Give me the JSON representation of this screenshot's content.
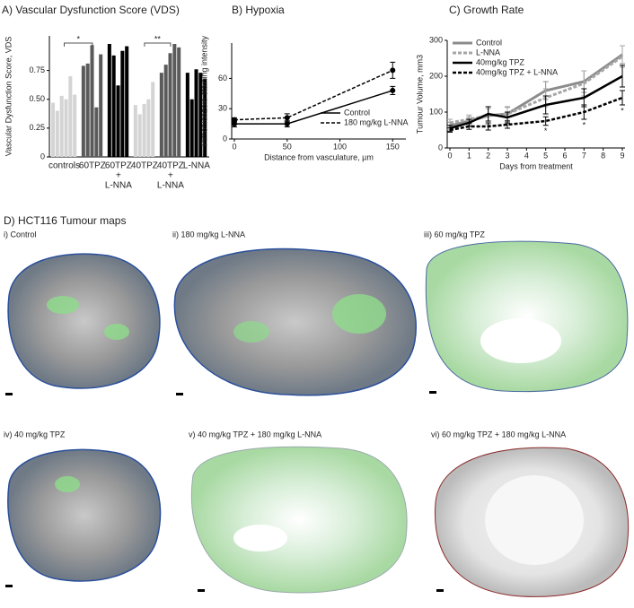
{
  "chart_data": [
    {
      "type": "bar",
      "title": "A) Vascular Dysfunction Score (VDS)",
      "y_label": "Vascular Dysfunction Score, VDS",
      "ylim": [
        0,
        1.05
      ],
      "yticks": [
        0,
        0.25,
        {
          "value": 0.5,
          "label": "0.50"
        },
        0.75
      ],
      "groups": [
        {
          "label_lines": [
            "controls"
          ],
          "color": "#d4d4d4",
          "values": [
            0.47,
            0.4,
            0.53,
            0.5,
            0.7,
            0.54
          ]
        },
        {
          "label_lines": [
            "60TPZ"
          ],
          "color": "#5a5a5a",
          "values": [
            0.79,
            0.81,
            0.97,
            0.43,
            0.89
          ]
        },
        {
          "label_lines": [
            "60TPZ",
            "+",
            "L-NNA"
          ],
          "color": "#000000",
          "values": [
            0.98,
            0.88,
            0.62,
            0.92,
            0.96
          ]
        },
        {
          "label_lines": [
            "40TPZ"
          ],
          "color": "#d4d4d4",
          "values": [
            0.45,
            0.37,
            0.46,
            0.5,
            0.65
          ]
        },
        {
          "label_lines": [
            "40TPZ",
            "+",
            "L-NNA"
          ],
          "color": "#5a5a5a",
          "values": [
            0.73,
            0.8,
            0.9,
            0.98,
            0.95
          ]
        },
        {
          "label_lines": [
            "L-NNA"
          ],
          "color": "#000000",
          "values": [
            0.73,
            0.5,
            0.76,
            0.73,
            0.68
          ]
        }
      ],
      "significance": [
        {
          "label": "*",
          "from": 0,
          "to": 1
        },
        {
          "label": "**",
          "from": 3,
          "to": 4
        }
      ]
    },
    {
      "type": "line",
      "title": "B) Hypoxia",
      "x_label": "Distance from vasculature, µm",
      "y_label": "Pimonidazole staining intensity",
      "x": [
        0,
        50,
        150
      ],
      "xlim": [
        0,
        160
      ],
      "xticks": [
        0,
        50,
        100,
        150
      ],
      "ylim": [
        0,
        95
      ],
      "yticks": [
        0,
        30,
        60
      ],
      "legend": "lower right",
      "series": [
        {
          "name": "Control",
          "color": "#000000",
          "dash": false,
          "width": 1.5,
          "values": [
            15,
            15,
            48
          ],
          "errors": [
            3,
            3,
            4
          ]
        },
        {
          "name": "180 mg/kg L-NNA",
          "color": "#000000",
          "dash": true,
          "width": 1.5,
          "values": [
            19,
            21,
            68
          ],
          "errors": [
            2,
            4,
            8
          ]
        }
      ]
    },
    {
      "type": "line",
      "title": "C) Growth Rate",
      "x_label": "Days from treatment",
      "y_label": "Tumour Volume, mm3",
      "x": [
        0,
        1,
        2,
        3,
        5,
        7,
        9
      ],
      "xlim": [
        0,
        9
      ],
      "xticks": [
        0,
        1,
        2,
        3,
        4,
        5,
        6,
        7,
        8,
        9
      ],
      "ylim": [
        0,
        300
      ],
      "yticks": [
        0,
        100,
        200,
        300
      ],
      "legend": "upper left",
      "series": [
        {
          "name": "Control",
          "color": "#8c8c8c",
          "dash": false,
          "width": 3,
          "values": [
            62,
            75,
            90,
            95,
            160,
            185,
            260
          ],
          "errors": [
            10,
            12,
            25,
            20,
            25,
            30,
            25
          ]
        },
        {
          "name": "L-NNA",
          "color": "#a6a6a6",
          "dash": true,
          "width": 3,
          "values": [
            70,
            80,
            90,
            95,
            140,
            180,
            255
          ],
          "errors": [
            10,
            12,
            20,
            18,
            25,
            35,
            30
          ]
        },
        {
          "name": "40mg/kg TPZ",
          "color": "#000000",
          "dash": false,
          "width": 2.5,
          "values": [
            55,
            70,
            95,
            85,
            120,
            140,
            200
          ],
          "errors": [
            8,
            10,
            20,
            15,
            25,
            25,
            30
          ]
        },
        {
          "name": "40mg/kg TPZ + L-NNA",
          "color": "#000000",
          "dash": true,
          "width": 2.5,
          "values": [
            50,
            60,
            60,
            65,
            75,
            100,
            140
          ],
          "errors": [
            6,
            8,
            10,
            10,
            12,
            20,
            20
          ]
        }
      ],
      "annotations": [
        {
          "label": "*",
          "x": 5
        },
        {
          "label": "*",
          "x": 7
        },
        {
          "label": "*",
          "x": 9
        }
      ]
    }
  ],
  "panel_d": {
    "title": "D) HCT116 Tumour maps",
    "maps": [
      "i) Control",
      "ii) 180 mg/kg L-NNA",
      "iii) 60 mg/kg TPZ",
      "iv) 40 mg/kg TPZ",
      "v) 40 mg/kg TPZ + 180 mg/kg L-NNA",
      "vi) 60 mg/kg TPZ + 180 mg/kg L-NNA"
    ]
  }
}
